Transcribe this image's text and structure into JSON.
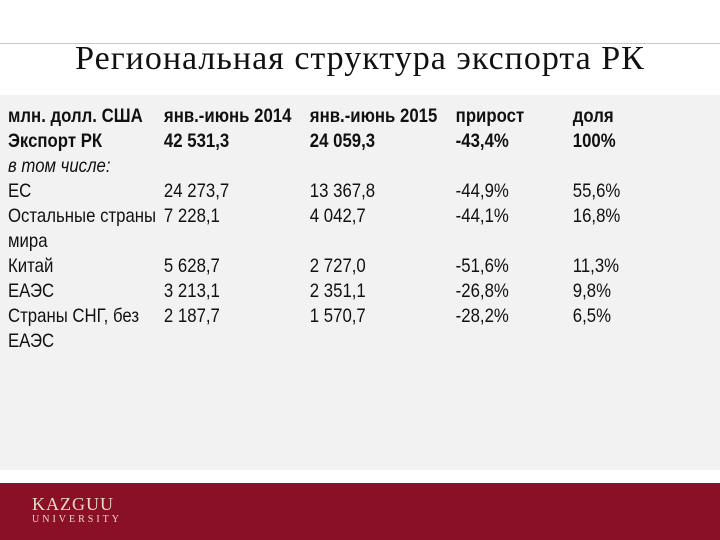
{
  "title": "Региональная структура экспорта РК",
  "table": {
    "header": [
      "млн. долл. США",
      "янв.-июнь 2014",
      "янв.-июнь 2015",
      "прирост",
      "доля"
    ],
    "total": [
      "Экспорт РК",
      "42 531,3",
      "24 059,3",
      "-43,4%",
      "100%"
    ],
    "subheading": "в том числе:",
    "rows": [
      {
        "label": "ЕС",
        "label_cont": "",
        "v2014": "24 273,7",
        "v2015": "13 367,8",
        "growth": "-44,9%",
        "share": "55,6%"
      },
      {
        "label": "Остальные страны",
        "label_cont": "мира",
        "v2014": "7 228,1",
        "v2015": "4 042,7",
        "growth": "-44,1%",
        "share": "16,8%"
      },
      {
        "label": "Китай",
        "label_cont": "",
        "v2014": "5 628,7",
        "v2015": "2 727,0",
        "growth": "-51,6%",
        "share": "11,3%"
      },
      {
        "label": "ЕАЭС",
        "label_cont": "",
        "v2014": "3 213,1",
        "v2015": "2 351,1",
        "growth": "-26,8%",
        "share": "9,8%"
      },
      {
        "label": "Страны СНГ, без",
        "label_cont": "ЕАЭС",
        "v2014": "2 187,7",
        "v2015": "1 570,7",
        "growth": "-28,2%",
        "share": "6,5%"
      }
    ]
  },
  "footer": {
    "logo_main": "KAZGUU",
    "logo_sub": "UNIVERSITY"
  },
  "colors": {
    "footer_bg": "#8a1027",
    "logo_text": "#e8dcc0",
    "panel_bg": "#f2f2f2"
  }
}
